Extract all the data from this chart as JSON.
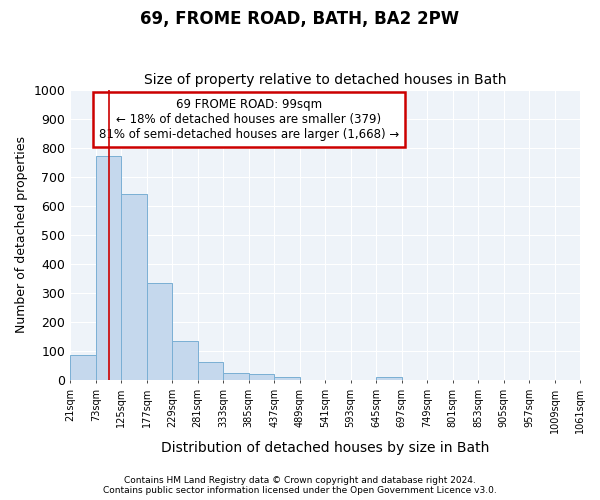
{
  "title1": "69, FROME ROAD, BATH, BA2 2PW",
  "title2": "Size of property relative to detached houses in Bath",
  "xlabel": "Distribution of detached houses by size in Bath",
  "ylabel": "Number of detached properties",
  "footer1": "Contains HM Land Registry data © Crown copyright and database right 2024.",
  "footer2": "Contains public sector information licensed under the Open Government Licence v3.0.",
  "annotation_title": "69 FROME ROAD: 99sqm",
  "annotation_line1": "← 18% of detached houses are smaller (379)",
  "annotation_line2": "81% of semi-detached houses are larger (1,668) →",
  "bar_color": "#c5d8ed",
  "bar_edge_color": "#7aafd4",
  "vline_color": "#cc0000",
  "vline_x": 99,
  "bins": [
    21,
    73,
    125,
    177,
    229,
    281,
    333,
    385,
    437,
    489,
    541,
    593,
    645,
    697,
    749,
    801,
    853,
    905,
    957,
    1009,
    1061
  ],
  "bin_labels": [
    "21sqm",
    "73sqm",
    "125sqm",
    "177sqm",
    "229sqm",
    "281sqm",
    "333sqm",
    "385sqm",
    "437sqm",
    "489sqm",
    "541sqm",
    "593sqm",
    "645sqm",
    "697sqm",
    "749sqm",
    "801sqm",
    "853sqm",
    "905sqm",
    "957sqm",
    "1009sqm",
    "1061sqm"
  ],
  "values": [
    85,
    770,
    640,
    335,
    135,
    60,
    25,
    20,
    10,
    0,
    0,
    0,
    10,
    0,
    0,
    0,
    0,
    0,
    0,
    0
  ],
  "ylim": [
    0,
    1000
  ],
  "yticks": [
    0,
    100,
    200,
    300,
    400,
    500,
    600,
    700,
    800,
    900,
    1000
  ],
  "fig_background": "#ffffff",
  "plot_bg_color": "#eef3f9",
  "grid_color": "#ffffff",
  "annotation_box_color": "#ffffff",
  "annotation_box_edge": "#cc0000",
  "title1_fontsize": 12,
  "title2_fontsize": 10,
  "ylabel_fontsize": 9,
  "xlabel_fontsize": 10
}
